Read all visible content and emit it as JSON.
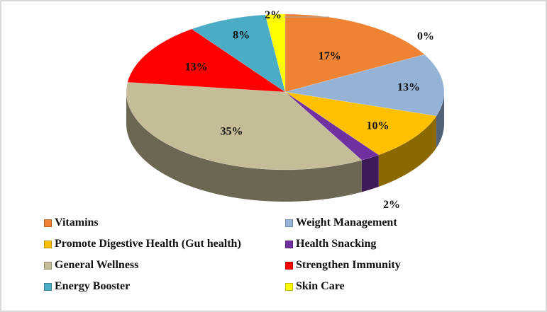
{
  "chart_data": {
    "type": "pie",
    "style": "3d",
    "categories": [
      "Vitamins",
      "Weight Management",
      "Promote Digestive Health (Gut health)",
      "Health Snacking",
      "General Wellness",
      "Strengthen Immunity",
      "Energy Booster",
      "Skin Care"
    ],
    "values": [
      17,
      13,
      10,
      2,
      35,
      13,
      8,
      2
    ],
    "data_labels": [
      "17%",
      "13%",
      "10%",
      "2%",
      "35%",
      "13%",
      "8%",
      "2%"
    ],
    "extra_labels": [
      "0%"
    ],
    "colors": [
      "#EE8333",
      "#95B3D7",
      "#FFC000",
      "#7030A0",
      "#C4BD97",
      "#FF0000",
      "#4BACC6",
      "#FFFF00"
    ],
    "legend_position": "bottom"
  }
}
